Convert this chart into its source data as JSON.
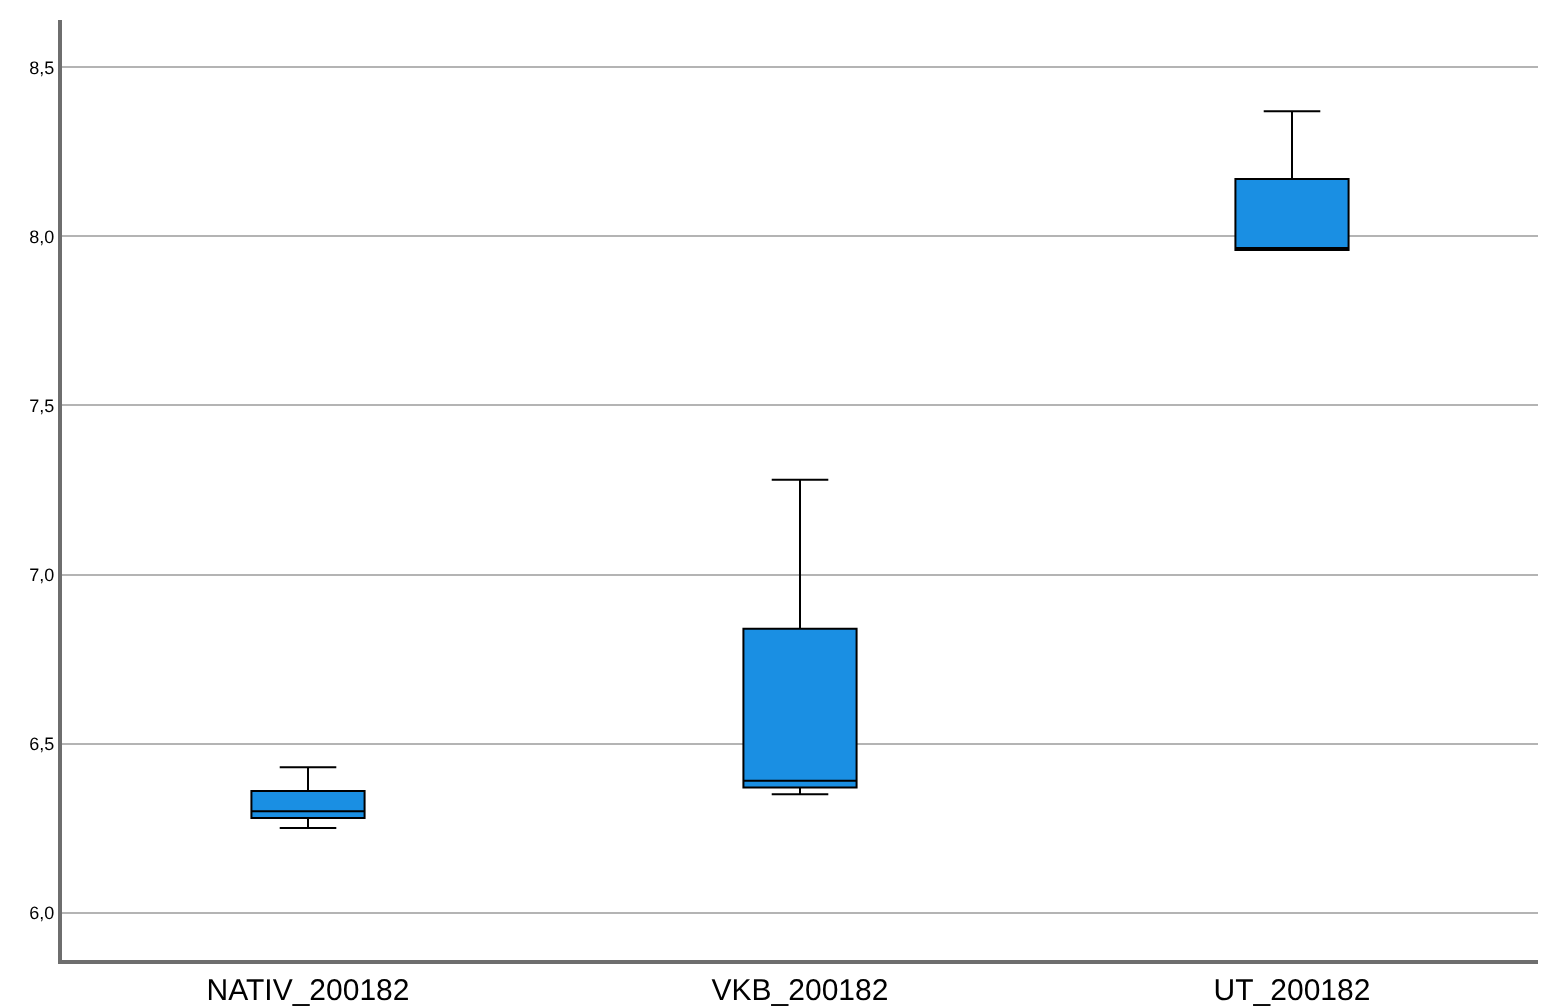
{
  "chart_data": {
    "type": "box",
    "categories": [
      "NATIV_200182",
      "VKB_200182",
      "UT_200182"
    ],
    "boxes": [
      {
        "low": 6.25,
        "q1": 6.28,
        "median": 6.3,
        "q3": 6.36,
        "high": 6.43
      },
      {
        "low": 6.35,
        "q1": 6.37,
        "median": 6.39,
        "q3": 6.84,
        "high": 7.28
      },
      {
        "low": 7.96,
        "q1": 7.96,
        "median": 7.96,
        "q3": 8.17,
        "high": 8.37
      }
    ],
    "color": "#1a8fe3",
    "ylim": [
      5.86,
      8.64
    ],
    "yticks": [
      {
        "value": 6.0,
        "label": "6,0"
      },
      {
        "value": 6.5,
        "label": "6,5"
      },
      {
        "value": 7.0,
        "label": "7,0"
      },
      {
        "value": 7.5,
        "label": "7,5"
      },
      {
        "value": 8.0,
        "label": "8,0"
      },
      {
        "value": 8.5,
        "label": "8,5"
      }
    ],
    "grid": "y"
  }
}
